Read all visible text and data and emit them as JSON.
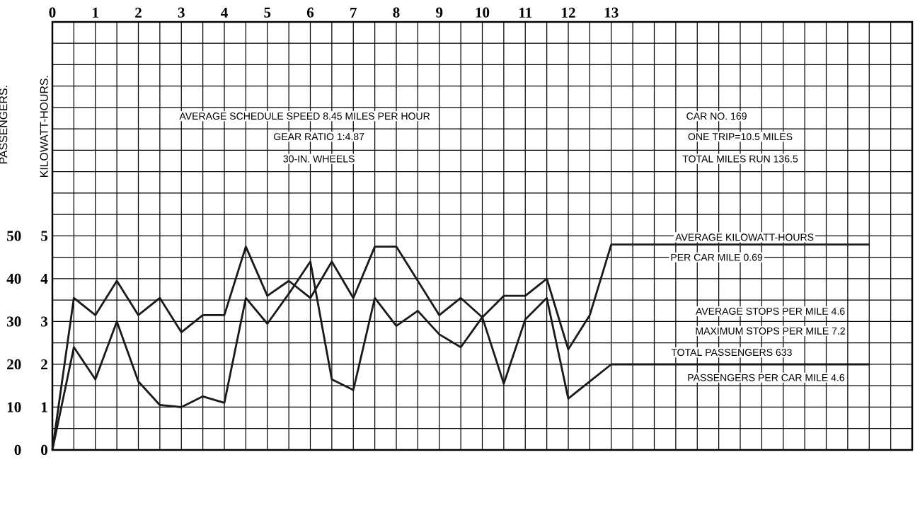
{
  "chart_data": {
    "type": "line",
    "x": [
      0,
      0.5,
      1,
      1.5,
      2,
      2.5,
      3,
      3.5,
      4,
      4.5,
      5,
      5.5,
      6,
      6.5,
      7,
      7.5,
      8,
      8.5,
      9,
      9.5,
      10,
      10.5,
      11,
      11.5,
      12,
      12.5,
      13,
      19
    ],
    "series": [
      {
        "color": "#1a1a1a",
        "values": [
          0,
          3.55,
          3.15,
          3.95,
          3.15,
          3.55,
          2.75,
          3.15,
          3.15,
          4.75,
          3.6,
          3.95,
          3.55,
          4.4,
          3.55,
          4.75,
          4.75,
          3.95,
          3.15,
          3.55,
          3.1,
          3.6,
          3.6,
          4.0,
          2.35,
          3.15,
          4.8,
          4.8
        ]
      },
      {
        "color": "#1a1a1a",
        "values": [
          0,
          2.4,
          1.65,
          3.0,
          1.6,
          1.05,
          1.0,
          1.25,
          1.1,
          3.55,
          2.95,
          3.65,
          4.4,
          1.65,
          1.4,
          3.55,
          2.9,
          3.25,
          2.7,
          2.4,
          3.1,
          1.55,
          3.05,
          3.55,
          1.2,
          1.6,
          2.0,
          2.0
        ]
      }
    ],
    "xlim": [
      0,
      20
    ],
    "xticks": [
      0,
      1,
      2,
      3,
      4,
      5,
      6,
      7,
      8,
      9,
      10,
      11,
      12,
      13,
      {
        "value": 14,
        "label": null
      },
      {
        "value": 15,
        "label": null
      },
      {
        "value": 16,
        "label": null
      },
      {
        "value": 17,
        "label": null
      },
      {
        "value": 18,
        "label": null
      },
      {
        "value": 19,
        "label": null
      },
      {
        "value": 20,
        "label": null
      }
    ],
    "ylim": [
      0,
      10
    ],
    "yticks": [
      0,
      1,
      2,
      3,
      4,
      5,
      {
        "value": 6,
        "label": null
      },
      {
        "value": 7,
        "label": null
      },
      {
        "value": 8,
        "label": null
      },
      {
        "value": 9,
        "label": null
      },
      {
        "value": 10,
        "label": null
      }
    ],
    "y2lim": [
      0,
      100
    ],
    "y2ticks": [
      0,
      10,
      20,
      30,
      40,
      50
    ],
    "ylabel": "KILOWATT-HOURS.",
    "y2label": "PASSENGERS.",
    "grid": true,
    "annotations": [
      "AVERAGE SCHEDULE SPEED 8.45 MILES PER HOUR",
      "GEAR RATIO 1:4.87",
      "30-IN. WHEELS",
      "CAR NO. 169",
      "ONE TRIP=10.5 MILES",
      "TOTAL MILES RUN 136.5",
      "AVERAGE KILOWATT-HOURS",
      "PER CAR MILE 0.69",
      "AVERAGE STOPS PER MILE 4.6",
      "MAXIMUM STOPS PER MILE 7.2",
      "TOTAL PASSENGERS 633",
      "PASSENGERS PER CAR MILE 4.6"
    ]
  }
}
